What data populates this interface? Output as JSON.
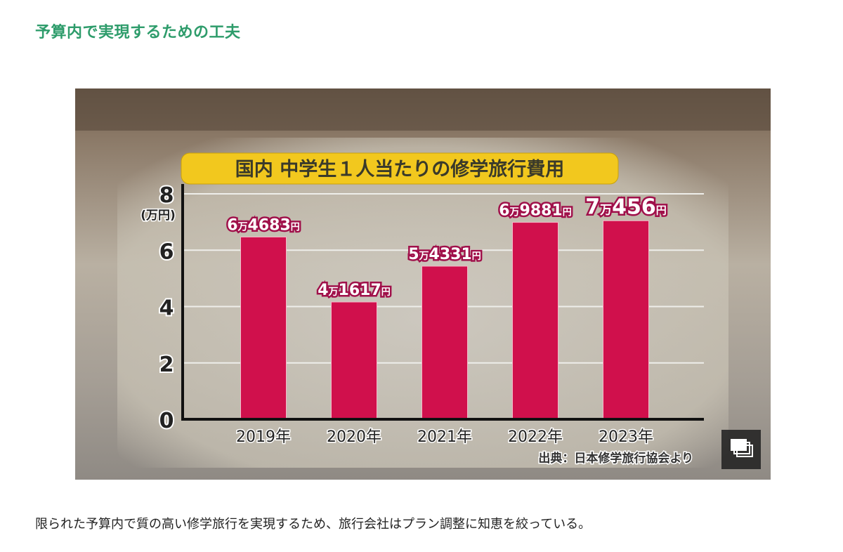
{
  "heading": "予算内で実現するための工夫",
  "caption": "限られた予算内で質の高い修学旅行を実現するため、旅行会社はプラン調整に知恵を絞っている。",
  "gallery_icon": "gallery-stack-icon",
  "colors": {
    "heading": "#2e9c6b",
    "bar": "#d0104c",
    "title_bg": "#f2c81e"
  },
  "chart_data": {
    "type": "bar",
    "title": "国内 中学生１人当たりの修学旅行費用",
    "ylabel": "(万円)",
    "xlabel": "",
    "ylim": [
      0,
      8
    ],
    "yticks": [
      "0",
      "2",
      "4",
      "6",
      "8"
    ],
    "grid": true,
    "categories": [
      "2019年",
      "2020年",
      "2021年",
      "2022年",
      "2023年"
    ],
    "values": [
      6.4683,
      4.1617,
      5.4331,
      6.9881,
      7.0456
    ],
    "labels": [
      {
        "man": "6",
        "man_unit": "万",
        "rest": "4683",
        "yen": "円"
      },
      {
        "man": "4",
        "man_unit": "万",
        "rest": "1617",
        "yen": "円"
      },
      {
        "man": "5",
        "man_unit": "万",
        "rest": "4331",
        "yen": "円"
      },
      {
        "man": "6",
        "man_unit": "万",
        "rest": "9881",
        "yen": "円"
      },
      {
        "man": "7",
        "man_unit": "万",
        "rest": "456",
        "yen": "円"
      }
    ],
    "source": "出典：日本修学旅行協会より"
  }
}
